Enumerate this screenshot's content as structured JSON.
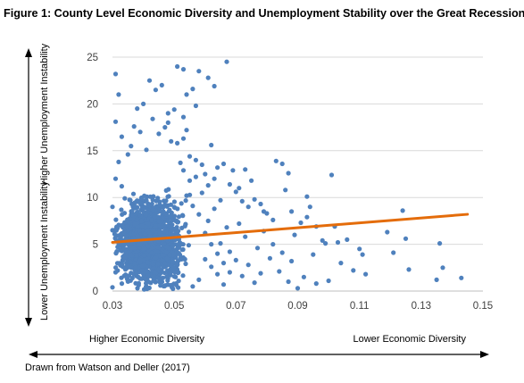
{
  "title": "Figure 1: County Level Economic Diversity and Unemployment Stability over the Great Recession",
  "source_note": "Drawn from Watson and Deller (2017)",
  "colors": {
    "point": "#4F81BD",
    "trend": "#E46C0A",
    "grid": "#d9d9d9",
    "axis": "#bfbfbf"
  },
  "chart_data": {
    "type": "scatter",
    "title": "Figure 1: County Level Economic Diversity and Unemployment Stability over the Great Recession",
    "xlabel_low": "Higher Economic Diversity",
    "xlabel_high": "Lower Economic Diversity",
    "ylabel_low": "Lower Unemployment Instability",
    "ylabel_high": "Higher Unemployment Instability",
    "xlim": [
      0.03,
      0.15
    ],
    "ylim": [
      0,
      25
    ],
    "x_ticks": [
      "0.03",
      "0.05",
      "0.07",
      "0.09",
      "0.11",
      "0.13",
      "0.15"
    ],
    "y_ticks": [
      "0",
      "5",
      "10",
      "15",
      "20",
      "25"
    ],
    "grid": "horizontal",
    "trendline": {
      "x": [
        0.03,
        0.145
      ],
      "y": [
        5.2,
        8.2
      ]
    },
    "cluster": {
      "x_center": 0.042,
      "x_spread": 0.007,
      "y_center": 5.2,
      "y_spread": 3.0
    },
    "points": [
      [
        0.031,
        23.2
      ],
      [
        0.042,
        22.5
      ],
      [
        0.046,
        22.0
      ],
      [
        0.044,
        21.5
      ],
      [
        0.032,
        21.0
      ],
      [
        0.04,
        20.0
      ],
      [
        0.038,
        19.5
      ],
      [
        0.048,
        19.0
      ],
      [
        0.05,
        19.4
      ],
      [
        0.043,
        18.4
      ],
      [
        0.031,
        18.1
      ],
      [
        0.037,
        17.6
      ],
      [
        0.039,
        17.0
      ],
      [
        0.045,
        16.8
      ],
      [
        0.047,
        17.5
      ],
      [
        0.049,
        16.0
      ],
      [
        0.051,
        15.8
      ],
      [
        0.036,
        15.5
      ],
      [
        0.041,
        15.1
      ],
      [
        0.053,
        16.3
      ],
      [
        0.048,
        18.0
      ],
      [
        0.033,
        16.5
      ],
      [
        0.035,
        14.6
      ],
      [
        0.051,
        24.0
      ],
      [
        0.053,
        23.7
      ],
      [
        0.061,
        22.8
      ],
      [
        0.058,
        23.5
      ],
      [
        0.067,
        24.5
      ],
      [
        0.056,
        21.6
      ],
      [
        0.054,
        21.0
      ],
      [
        0.063,
        21.9
      ],
      [
        0.057,
        19.8
      ],
      [
        0.053,
        18.6
      ],
      [
        0.054,
        17.2
      ],
      [
        0.055,
        14.4
      ],
      [
        0.062,
        15.6
      ],
      [
        0.057,
        14.0
      ],
      [
        0.059,
        13.5
      ],
      [
        0.064,
        13.2
      ],
      [
        0.066,
        13.6
      ],
      [
        0.06,
        12.5
      ],
      [
        0.063,
        12.0
      ],
      [
        0.068,
        11.4
      ],
      [
        0.07,
        10.6
      ],
      [
        0.069,
        12.9
      ],
      [
        0.071,
        11.0
      ],
      [
        0.073,
        13.0
      ],
      [
        0.075,
        11.8
      ],
      [
        0.072,
        9.6
      ],
      [
        0.074,
        9.0
      ],
      [
        0.076,
        9.8
      ],
      [
        0.078,
        9.3
      ],
      [
        0.079,
        8.5
      ],
      [
        0.08,
        8.3
      ],
      [
        0.082,
        7.6
      ],
      [
        0.083,
        13.9
      ],
      [
        0.085,
        13.6
      ],
      [
        0.086,
        10.8
      ],
      [
        0.087,
        12.6
      ],
      [
        0.088,
        8.5
      ],
      [
        0.089,
        6.0
      ],
      [
        0.091,
        7.3
      ],
      [
        0.093,
        10.1
      ],
      [
        0.094,
        9.0
      ],
      [
        0.093,
        7.9
      ],
      [
        0.095,
        3.9
      ],
      [
        0.096,
        6.9
      ],
      [
        0.098,
        5.4
      ],
      [
        0.099,
        5.1
      ],
      [
        0.101,
        12.4
      ],
      [
        0.102,
        6.9
      ],
      [
        0.103,
        5.2
      ],
      [
        0.104,
        3.0
      ],
      [
        0.106,
        5.5
      ],
      [
        0.108,
        2.2
      ],
      [
        0.11,
        4.5
      ],
      [
        0.111,
        3.9
      ],
      [
        0.112,
        1.8
      ],
      [
        0.119,
        6.3
      ],
      [
        0.121,
        4.1
      ],
      [
        0.124,
        8.6
      ],
      [
        0.125,
        5.6
      ],
      [
        0.126,
        2.3
      ],
      [
        0.135,
        1.2
      ],
      [
        0.136,
        5.1
      ],
      [
        0.137,
        2.5
      ],
      [
        0.143,
        1.4
      ],
      [
        0.081,
        3.5
      ],
      [
        0.084,
        2.1
      ],
      [
        0.087,
        1.0
      ],
      [
        0.09,
        0.3
      ],
      [
        0.092,
        1.5
      ],
      [
        0.096,
        0.8
      ],
      [
        0.1,
        1.1
      ],
      [
        0.076,
        0.9
      ],
      [
        0.078,
        1.9
      ],
      [
        0.074,
        2.8
      ],
      [
        0.07,
        3.3
      ],
      [
        0.072,
        1.6
      ],
      [
        0.066,
        0.7
      ],
      [
        0.064,
        1.8
      ],
      [
        0.062,
        2.6
      ],
      [
        0.06,
        3.4
      ],
      [
        0.058,
        1.2
      ],
      [
        0.056,
        0.5
      ],
      [
        0.068,
        4.2
      ],
      [
        0.065,
        5.1
      ],
      [
        0.067,
        6.8
      ],
      [
        0.071,
        7.2
      ],
      [
        0.073,
        5.8
      ],
      [
        0.077,
        4.6
      ],
      [
        0.079,
        6.4
      ],
      [
        0.082,
        5.0
      ],
      [
        0.085,
        4.1
      ],
      [
        0.088,
        3.2
      ],
      [
        0.061,
        7.5
      ],
      [
        0.063,
        8.8
      ],
      [
        0.065,
        9.7
      ],
      [
        0.059,
        10.5
      ],
      [
        0.061,
        11.3
      ],
      [
        0.057,
        12.2
      ],
      [
        0.055,
        11.8
      ],
      [
        0.053,
        12.9
      ],
      [
        0.052,
        13.7
      ],
      [
        0.054,
        10.2
      ],
      [
        0.056,
        9.1
      ],
      [
        0.058,
        8.2
      ],
      [
        0.06,
        6.2
      ],
      [
        0.062,
        5.0
      ],
      [
        0.064,
        4.0
      ],
      [
        0.066,
        3.0
      ],
      [
        0.068,
        2.0
      ],
      [
        0.03,
        0.4
      ],
      [
        0.031,
        2.0
      ],
      [
        0.03,
        6.5
      ],
      [
        0.03,
        9.0
      ],
      [
        0.031,
        12.0
      ],
      [
        0.032,
        13.8
      ],
      [
        0.033,
        11.2
      ],
      [
        0.034,
        9.9
      ]
    ]
  }
}
